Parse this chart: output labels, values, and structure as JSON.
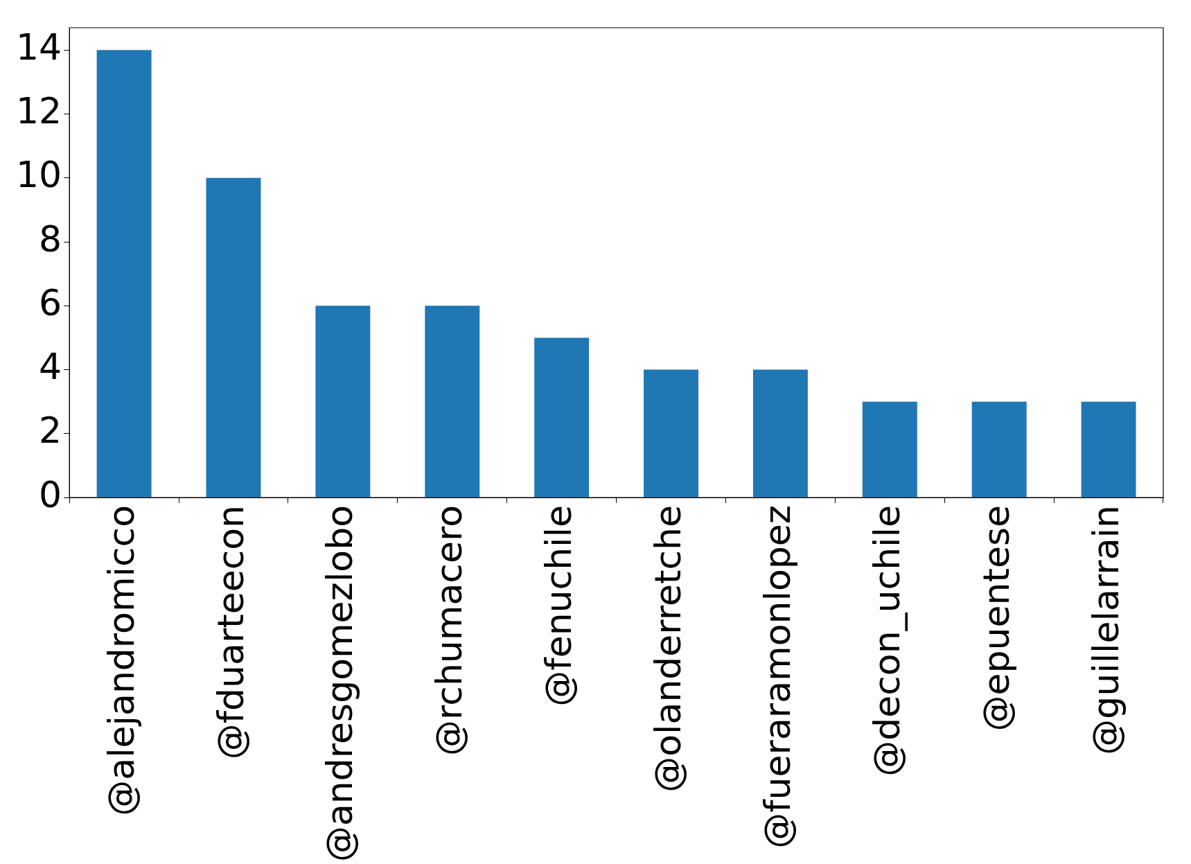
{
  "chart_data": {
    "type": "bar",
    "categories": [
      "@alejandromicco",
      "@fduarteecon",
      "@andresgomezlobo",
      "@rchumacero",
      "@fenuchile",
      "@olanderretche",
      "@fueraramonlopez",
      "@decon_uchile",
      "@epuentese",
      "@guillelarrain"
    ],
    "values": [
      14,
      10,
      6,
      6,
      5,
      4,
      4,
      3,
      3,
      3
    ],
    "color": "#1f77b4",
    "ylim": [
      0,
      14.7
    ],
    "yticks": [
      0,
      2,
      4,
      6,
      8,
      10,
      12,
      14
    ],
    "grid": false,
    "legend": false
  }
}
